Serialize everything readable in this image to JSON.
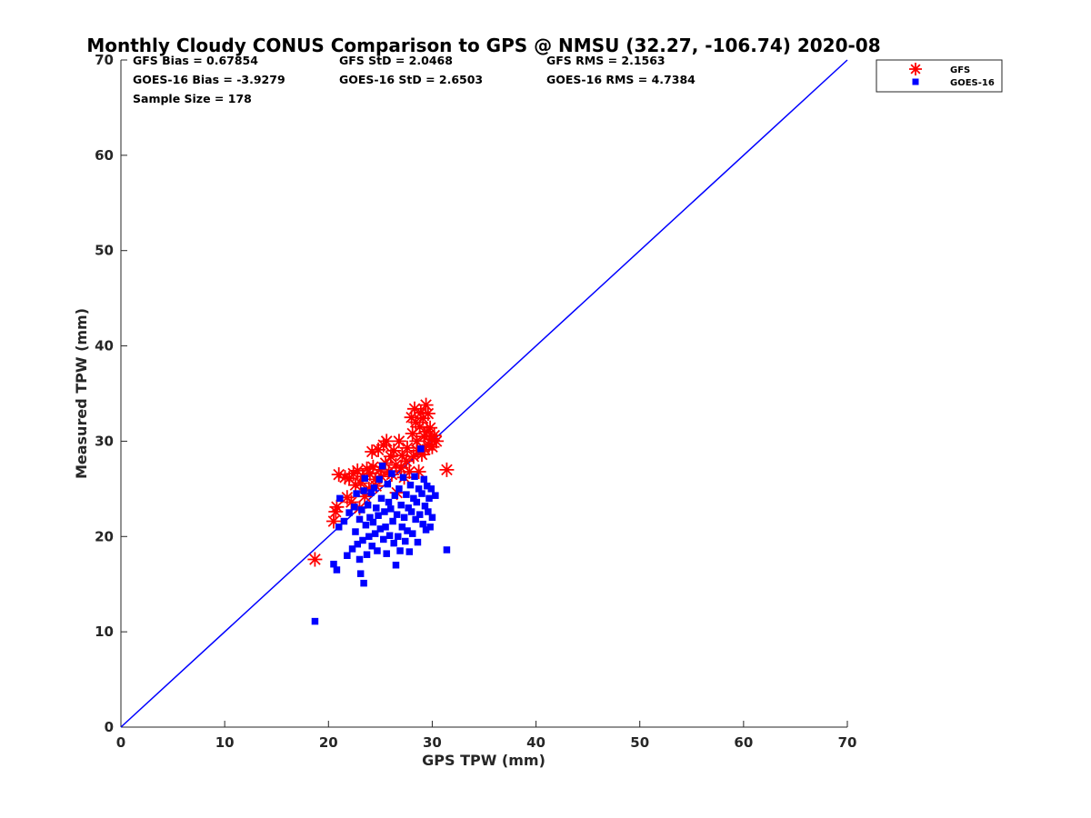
{
  "chart_data": {
    "type": "scatter",
    "title": "Monthly Cloudy CONUS Comparison to GPS @ NMSU (32.27, -106.74) 2020-08",
    "xlabel": "GPS TPW (mm)",
    "ylabel": "Measured TPW (mm)",
    "xlim": [
      0,
      70
    ],
    "ylim": [
      0,
      70
    ],
    "xticks": [
      "0",
      "10",
      "20",
      "30",
      "40",
      "50",
      "60",
      "70"
    ],
    "yticks": [
      "0",
      "10",
      "20",
      "30",
      "40",
      "50",
      "60",
      "70"
    ],
    "grid": false,
    "legend_position": "top-right, outside plot",
    "reference_line": {
      "from": [
        0,
        0
      ],
      "to": [
        70,
        70
      ],
      "color": "#0000ff"
    },
    "stats": [
      [
        "GFS Bias = 0.67854",
        "GFS StD = 2.0468",
        "GFS RMS = 2.1563"
      ],
      [
        "GOES-16 Bias = -3.9279",
        "GOES-16 StD = 2.6503",
        "GOES-16 RMS = 4.7384"
      ],
      [
        "Sample Size = 178",
        "",
        ""
      ]
    ],
    "series": [
      {
        "name": "GFS",
        "marker": "asterisk",
        "color": "#ff0000",
        "points": [
          [
            18.7,
            17.6
          ],
          [
            20.5,
            21.6
          ],
          [
            20.7,
            22.6
          ],
          [
            20.8,
            23.1
          ],
          [
            21.0,
            26.5
          ],
          [
            21.6,
            26.2
          ],
          [
            21.8,
            24.1
          ],
          [
            22.0,
            26.1
          ],
          [
            22.2,
            23.6
          ],
          [
            22.4,
            26.6
          ],
          [
            22.6,
            25.4
          ],
          [
            22.8,
            26.9
          ],
          [
            23.0,
            23.0
          ],
          [
            23.1,
            25.6
          ],
          [
            23.3,
            26.3
          ],
          [
            23.5,
            24.2
          ],
          [
            23.7,
            27.1
          ],
          [
            23.9,
            25.0
          ],
          [
            24.0,
            26.6
          ],
          [
            24.2,
            28.9
          ],
          [
            24.3,
            27.3
          ],
          [
            24.5,
            26.0
          ],
          [
            24.6,
            25.3
          ],
          [
            24.8,
            29.1
          ],
          [
            25.0,
            27.0
          ],
          [
            25.1,
            26.3
          ],
          [
            25.3,
            29.6
          ],
          [
            25.5,
            27.7
          ],
          [
            25.6,
            30.0
          ],
          [
            25.8,
            26.8
          ],
          [
            26.0,
            28.4
          ],
          [
            26.1,
            26.5
          ],
          [
            26.3,
            29.0
          ],
          [
            26.5,
            27.5
          ],
          [
            26.6,
            24.6
          ],
          [
            26.8,
            30.0
          ],
          [
            27.0,
            27.2
          ],
          [
            27.1,
            28.5
          ],
          [
            27.3,
            26.2
          ],
          [
            27.5,
            27.9
          ],
          [
            27.6,
            29.3
          ],
          [
            27.8,
            26.8
          ],
          [
            28.0,
            32.5
          ],
          [
            28.1,
            30.8
          ],
          [
            28.2,
            28.4
          ],
          [
            28.3,
            33.4
          ],
          [
            28.4,
            32.0
          ],
          [
            28.5,
            30.0
          ],
          [
            28.6,
            29.0
          ],
          [
            28.7,
            26.8
          ],
          [
            28.8,
            31.5
          ],
          [
            28.9,
            33.0
          ],
          [
            29.0,
            28.6
          ],
          [
            29.1,
            32.4
          ],
          [
            29.2,
            30.5
          ],
          [
            29.3,
            29.1
          ],
          [
            29.4,
            33.8
          ],
          [
            29.5,
            31.0
          ],
          [
            29.6,
            32.9
          ],
          [
            29.7,
            29.6
          ],
          [
            29.8,
            31.4
          ],
          [
            29.9,
            30.2
          ],
          [
            30.0,
            29.4
          ],
          [
            30.2,
            30.6
          ],
          [
            30.4,
            30.0
          ],
          [
            31.4,
            27.0
          ]
        ]
      },
      {
        "name": "GOES-16",
        "marker": "square",
        "color": "#0000ff",
        "points": [
          [
            18.7,
            11.1
          ],
          [
            20.5,
            17.1
          ],
          [
            20.8,
            16.5
          ],
          [
            21.0,
            21.0
          ],
          [
            21.1,
            24.0
          ],
          [
            21.5,
            21.6
          ],
          [
            21.8,
            18.0
          ],
          [
            22.0,
            22.5
          ],
          [
            22.3,
            18.7
          ],
          [
            22.5,
            23.1
          ],
          [
            22.6,
            20.5
          ],
          [
            22.7,
            24.5
          ],
          [
            22.8,
            19.2
          ],
          [
            23.0,
            17.6
          ],
          [
            23.0,
            21.8
          ],
          [
            23.1,
            16.1
          ],
          [
            23.2,
            22.8
          ],
          [
            23.3,
            19.6
          ],
          [
            23.4,
            15.1
          ],
          [
            23.4,
            24.8
          ],
          [
            23.5,
            26.1
          ],
          [
            23.6,
            21.2
          ],
          [
            23.7,
            18.1
          ],
          [
            23.8,
            23.3
          ],
          [
            23.9,
            20.0
          ],
          [
            24.0,
            22.0
          ],
          [
            24.1,
            24.6
          ],
          [
            24.2,
            19.0
          ],
          [
            24.3,
            21.5
          ],
          [
            24.4,
            25.1
          ],
          [
            24.5,
            20.3
          ],
          [
            24.6,
            23.0
          ],
          [
            24.7,
            18.5
          ],
          [
            24.8,
            22.2
          ],
          [
            24.9,
            26.0
          ],
          [
            25.0,
            20.8
          ],
          [
            25.1,
            24.0
          ],
          [
            25.2,
            27.4
          ],
          [
            25.3,
            19.7
          ],
          [
            25.4,
            22.6
          ],
          [
            25.5,
            21.0
          ],
          [
            25.6,
            18.2
          ],
          [
            25.7,
            25.5
          ],
          [
            25.8,
            23.6
          ],
          [
            25.9,
            20.1
          ],
          [
            26.0,
            22.9
          ],
          [
            26.1,
            26.6
          ],
          [
            26.2,
            21.6
          ],
          [
            26.3,
            19.3
          ],
          [
            26.4,
            24.3
          ],
          [
            26.5,
            17.0
          ],
          [
            26.6,
            22.3
          ],
          [
            26.7,
            20.0
          ],
          [
            26.8,
            25.0
          ],
          [
            26.9,
            18.5
          ],
          [
            27.0,
            23.3
          ],
          [
            27.1,
            21.0
          ],
          [
            27.2,
            26.2
          ],
          [
            27.3,
            22.0
          ],
          [
            27.4,
            19.5
          ],
          [
            27.5,
            24.4
          ],
          [
            27.6,
            20.6
          ],
          [
            27.7,
            23.0
          ],
          [
            27.8,
            18.4
          ],
          [
            27.9,
            25.4
          ],
          [
            28.0,
            22.6
          ],
          [
            28.1,
            20.3
          ],
          [
            28.2,
            24.0
          ],
          [
            28.3,
            26.3
          ],
          [
            28.4,
            21.8
          ],
          [
            28.5,
            23.6
          ],
          [
            28.6,
            19.4
          ],
          [
            28.7,
            25.0
          ],
          [
            28.8,
            22.3
          ],
          [
            28.9,
            29.2
          ],
          [
            29.0,
            24.5
          ],
          [
            29.1,
            21.3
          ],
          [
            29.2,
            26.0
          ],
          [
            29.3,
            23.2
          ],
          [
            29.4,
            20.7
          ],
          [
            29.5,
            25.3
          ],
          [
            29.6,
            22.6
          ],
          [
            29.7,
            24.0
          ],
          [
            29.8,
            21.0
          ],
          [
            29.9,
            25.0
          ],
          [
            30.0,
            22.0
          ],
          [
            30.3,
            24.3
          ],
          [
            31.4,
            18.6
          ]
        ]
      }
    ]
  }
}
